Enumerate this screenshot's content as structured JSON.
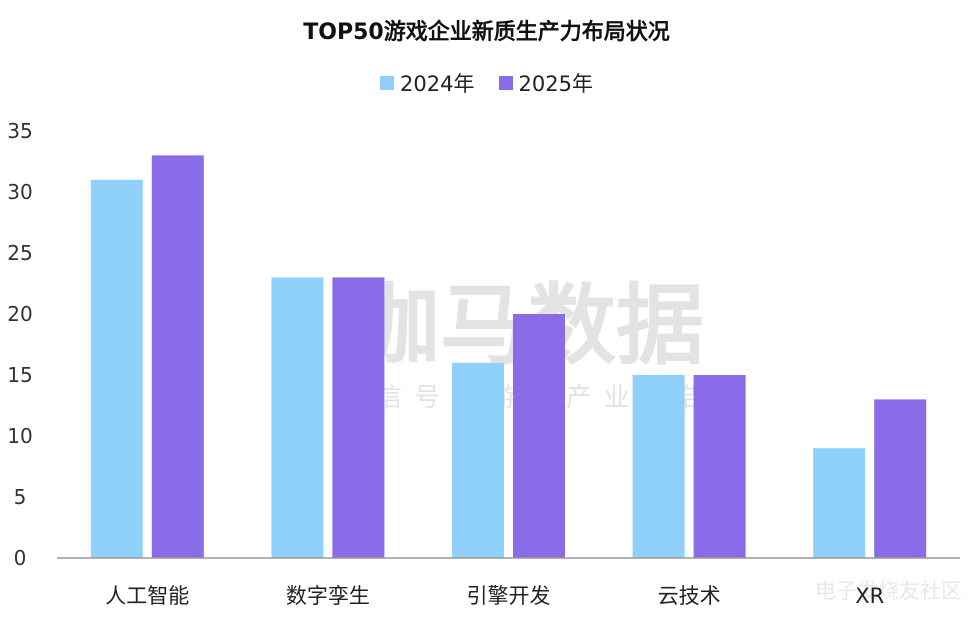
{
  "chart_data": {
    "type": "bar",
    "title": "TOP50游戏企业新质生产力布局状况",
    "categories": [
      "人工智能",
      "数字孪生",
      "引擎开发",
      "云技术",
      "XR"
    ],
    "series": [
      {
        "name": "2024年",
        "color": "#8fd1fb",
        "values": [
          31,
          23,
          16,
          15,
          9
        ]
      },
      {
        "name": "2025年",
        "color": "#8a6be8",
        "values": [
          33,
          23,
          20,
          15,
          13
        ]
      }
    ],
    "ylim": [
      0,
      35
    ],
    "yticks": [
      0,
      5,
      10,
      15,
      20,
      25,
      30,
      35
    ],
    "grid": false,
    "legend": "top-center"
  },
  "watermark": {
    "main": "伽马数据",
    "sub": "微信号：游戏产业报告",
    "corner": "电子发烧友社区"
  }
}
